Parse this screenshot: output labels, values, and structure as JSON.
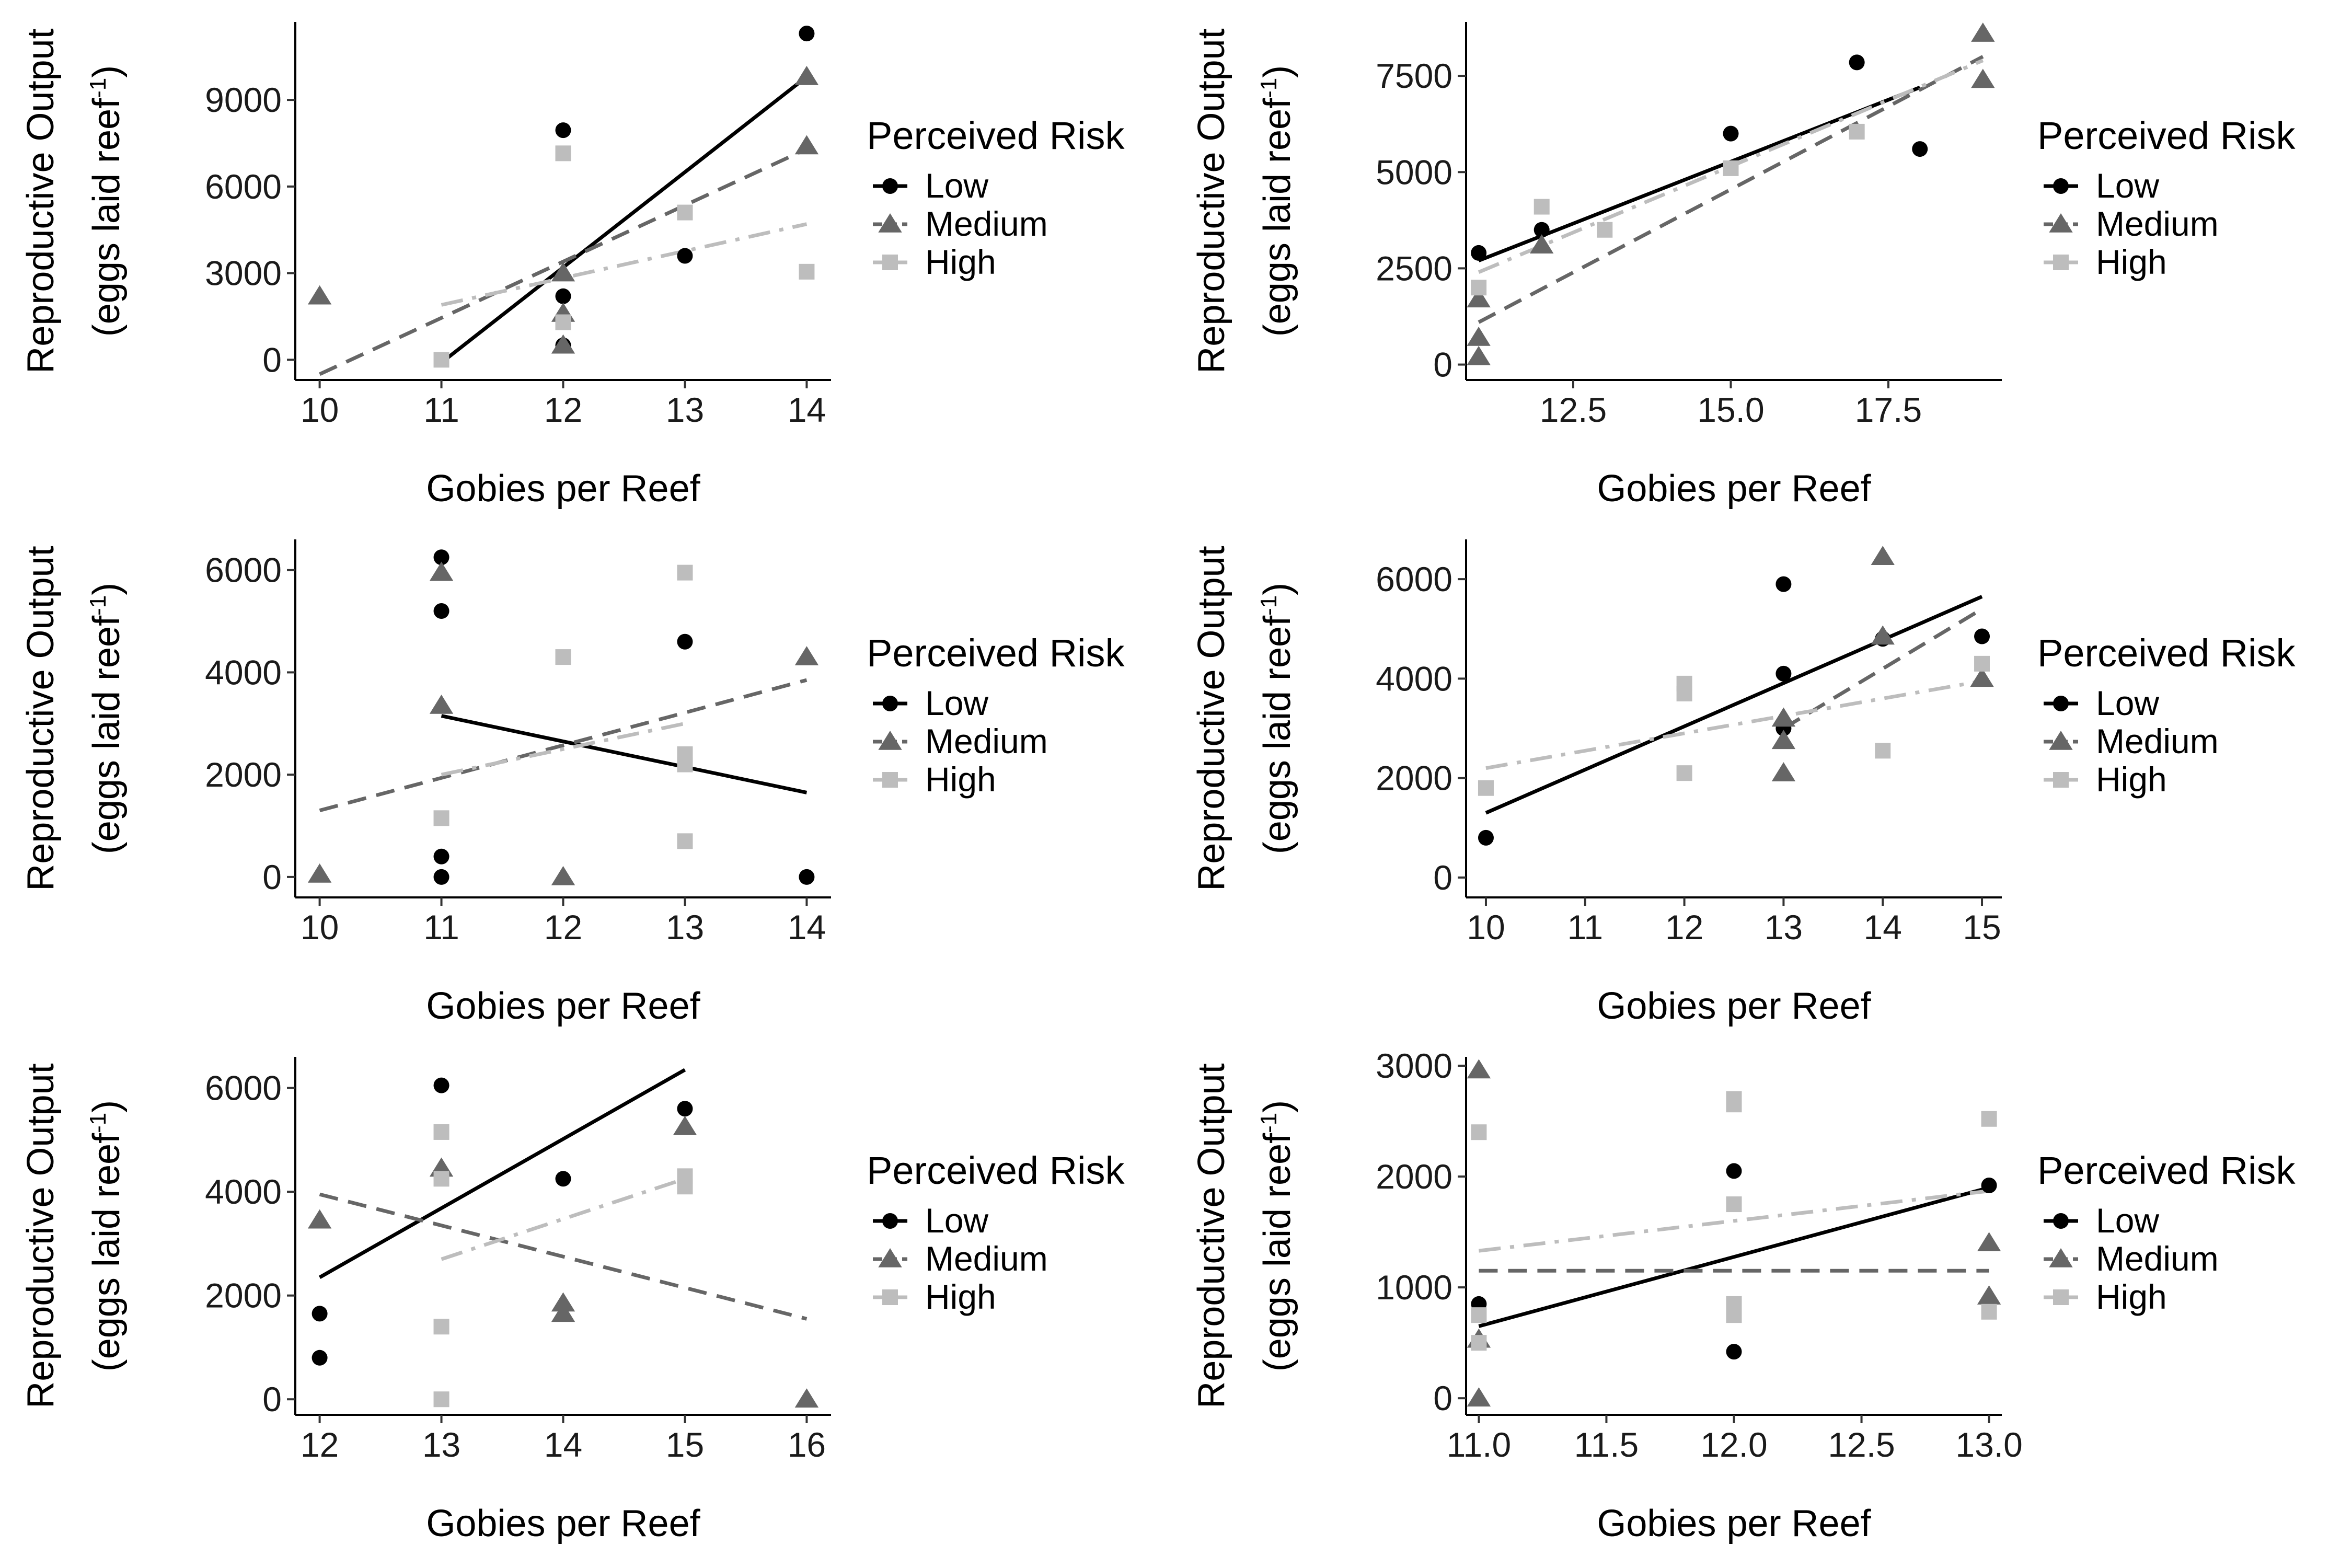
{
  "legend": {
    "title": "Perceived Risk",
    "levels": [
      "Low",
      "Medium",
      "High"
    ],
    "colors": {
      "Low": "#000000",
      "Medium": "#666666",
      "High": "#bdbdbd"
    },
    "shapes": {
      "Low": "circle",
      "Medium": "triangle",
      "High": "square"
    },
    "line_styles": {
      "Low": "solid",
      "Medium": "dashed",
      "High": "dot-dash"
    }
  },
  "axis_titles": {
    "x": "Gobies per Reef",
    "y_line1": "Reproductive Output",
    "y_line2_text": "(eggs laid reef",
    "y_line2_sup": "-1",
    "y_line2_close": ")"
  },
  "chart_data": [
    {
      "type": "scatter",
      "xlim": [
        9.8,
        14.2
      ],
      "ylim": [
        -700,
        11700
      ],
      "x_ticks": [
        10,
        11,
        12,
        13,
        14
      ],
      "x_tick_labels": [
        "10",
        "11",
        "12",
        "13",
        "14"
      ],
      "y_ticks": [
        0,
        3000,
        6000,
        9000
      ],
      "y_tick_labels": [
        "0",
        "3000",
        "6000",
        "9000"
      ],
      "series": [
        {
          "name": "Low",
          "points": [
            [
              12,
              7950
            ],
            [
              12,
              2200
            ],
            [
              12,
              500
            ],
            [
              13,
              3600
            ],
            [
              14,
              11300
            ]
          ],
          "fit": [
            [
              11,
              -100
            ],
            [
              14,
              9800
            ]
          ]
        },
        {
          "name": "Medium",
          "points": [
            [
              10,
              2200
            ],
            [
              12,
              3000
            ],
            [
              12,
              1600
            ],
            [
              12,
              500
            ],
            [
              14,
              9800
            ],
            [
              14,
              7400
            ]
          ],
          "fit": [
            [
              10,
              -500
            ],
            [
              14,
              7300
            ]
          ]
        },
        {
          "name": "High",
          "points": [
            [
              11,
              0
            ],
            [
              12,
              7150
            ],
            [
              12,
              1300
            ],
            [
              13,
              5100
            ],
            [
              14,
              3050
            ]
          ],
          "fit": [
            [
              11,
              1900
            ],
            [
              14,
              4700
            ]
          ]
        }
      ]
    },
    {
      "type": "scatter",
      "xlim": [
        10.8,
        19.3
      ],
      "ylim": [
        -400,
        8900
      ],
      "x_ticks": [
        12.5,
        15.0,
        17.5
      ],
      "x_tick_labels": [
        "12.5",
        "15.0",
        "17.5"
      ],
      "y_ticks": [
        0,
        2500,
        5000,
        7500
      ],
      "y_tick_labels": [
        "0",
        "2500",
        "5000",
        "7500"
      ],
      "series": [
        {
          "name": "Low",
          "points": [
            [
              11,
              2900
            ],
            [
              12,
              3500
            ],
            [
              15,
              6000
            ],
            [
              17,
              7850
            ],
            [
              18,
              5600
            ]
          ],
          "fit": [
            [
              11,
              2700
            ],
            [
              18,
              7200
            ]
          ]
        },
        {
          "name": "Medium",
          "points": [
            [
              11,
              1700
            ],
            [
              11,
              700
            ],
            [
              11,
              200
            ],
            [
              12,
              3100
            ],
            [
              19,
              8600
            ],
            [
              19,
              7400
            ]
          ],
          "fit": [
            [
              11,
              1100
            ],
            [
              19,
              8000
            ]
          ]
        },
        {
          "name": "High",
          "points": [
            [
              11,
              2000
            ],
            [
              12,
              4100
            ],
            [
              13,
              3500
            ],
            [
              15,
              5100
            ],
            [
              17,
              6050
            ]
          ],
          "fit": [
            [
              11,
              2400
            ],
            [
              19,
              7900
            ]
          ]
        }
      ]
    },
    {
      "type": "scatter",
      "xlim": [
        9.8,
        14.2
      ],
      "ylim": [
        -400,
        6600
      ],
      "x_ticks": [
        10,
        11,
        12,
        13,
        14
      ],
      "x_tick_labels": [
        "10",
        "11",
        "12",
        "13",
        "14"
      ],
      "y_ticks": [
        0,
        2000,
        4000,
        6000
      ],
      "y_tick_labels": [
        "0",
        "2000",
        "4000",
        "6000"
      ],
      "series": [
        {
          "name": "Low",
          "points": [
            [
              11,
              6250
            ],
            [
              11,
              5200
            ],
            [
              11,
              400
            ],
            [
              11,
              0
            ],
            [
              13,
              4600
            ],
            [
              14,
              0
            ]
          ],
          "fit": [
            [
              11,
              3150
            ],
            [
              14,
              1650
            ]
          ]
        },
        {
          "name": "Medium",
          "points": [
            [
              10,
              50
            ],
            [
              11,
              5950
            ],
            [
              11,
              3350
            ],
            [
              12,
              0
            ],
            [
              14,
              4300
            ]
          ],
          "fit": [
            [
              10,
              1300
            ],
            [
              14,
              3850
            ]
          ]
        },
        {
          "name": "High",
          "points": [
            [
              11,
              1150
            ],
            [
              12,
              4300
            ],
            [
              13,
              5950
            ],
            [
              13,
              2400
            ],
            [
              13,
              2200
            ],
            [
              13,
              700
            ]
          ],
          "fit": [
            [
              11,
              2000
            ],
            [
              13,
              3000
            ]
          ]
        }
      ]
    },
    {
      "type": "scatter",
      "xlim": [
        9.8,
        15.2
      ],
      "ylim": [
        -400,
        6800
      ],
      "x_ticks": [
        10,
        11,
        12,
        13,
        14,
        15
      ],
      "x_tick_labels": [
        "10",
        "11",
        "12",
        "13",
        "14",
        "15"
      ],
      "y_ticks": [
        0,
        2000,
        4000,
        6000
      ],
      "y_tick_labels": [
        "0",
        "2000",
        "4000",
        "6000"
      ],
      "series": [
        {
          "name": "Low",
          "points": [
            [
              10,
              800
            ],
            [
              13,
              5900
            ],
            [
              13,
              4100
            ],
            [
              13,
              3000
            ],
            [
              14,
              4800
            ],
            [
              15,
              4850
            ]
          ],
          "fit": [
            [
              10,
              1300
            ],
            [
              15,
              5650
            ]
          ]
        },
        {
          "name": "Medium",
          "points": [
            [
              13,
              3200
            ],
            [
              13,
              2750
            ],
            [
              13,
              2100
            ],
            [
              14,
              6450
            ],
            [
              14,
              4850
            ],
            [
              15,
              4000
            ]
          ],
          "fit": [
            [
              13,
              3000
            ],
            [
              15,
              5400
            ]
          ]
        },
        {
          "name": "High",
          "points": [
            [
              10,
              1800
            ],
            [
              12,
              3900
            ],
            [
              12,
              3700
            ],
            [
              12,
              2100
            ],
            [
              14,
              2550
            ],
            [
              15,
              4300
            ]
          ],
          "fit": [
            [
              10,
              2200
            ],
            [
              15,
              3950
            ]
          ]
        }
      ]
    },
    {
      "type": "scatter",
      "xlim": [
        11.8,
        16.2
      ],
      "ylim": [
        -300,
        6600
      ],
      "x_ticks": [
        12,
        13,
        14,
        15,
        16
      ],
      "x_tick_labels": [
        "12",
        "13",
        "14",
        "15",
        "16"
      ],
      "y_ticks": [
        0,
        2000,
        4000,
        6000
      ],
      "y_tick_labels": [
        "0",
        "2000",
        "4000",
        "6000"
      ],
      "series": [
        {
          "name": "Low",
          "points": [
            [
              12,
              1650
            ],
            [
              12,
              800
            ],
            [
              13,
              6050
            ],
            [
              14,
              4250
            ],
            [
              15,
              5600
            ]
          ],
          "fit": [
            [
              12,
              2350
            ],
            [
              15,
              6350
            ]
          ]
        },
        {
          "name": "Medium",
          "points": [
            [
              12,
              3450
            ],
            [
              13,
              4450
            ],
            [
              14,
              1850
            ],
            [
              14,
              1650
            ],
            [
              15,
              5250
            ],
            [
              16,
              0
            ]
          ],
          "fit": [
            [
              12,
              3950
            ],
            [
              16,
              1550
            ]
          ]
        },
        {
          "name": "High",
          "points": [
            [
              13,
              5150
            ],
            [
              13,
              4250
            ],
            [
              13,
              1400
            ],
            [
              13,
              0
            ],
            [
              15,
              4300
            ],
            [
              15,
              4100
            ]
          ],
          "fit": [
            [
              13,
              2700
            ],
            [
              15,
              4250
            ]
          ]
        }
      ]
    },
    {
      "type": "scatter",
      "xlim": [
        10.95,
        13.05
      ],
      "ylim": [
        -150,
        3080
      ],
      "x_ticks": [
        11.0,
        11.5,
        12.0,
        12.5,
        13.0
      ],
      "x_tick_labels": [
        "11.0",
        "11.5",
        "12.0",
        "12.5",
        "13.0"
      ],
      "y_ticks": [
        0,
        1000,
        2000,
        3000
      ],
      "y_tick_labels": [
        "0",
        "1000",
        "2000",
        "3000"
      ],
      "series": [
        {
          "name": "Low",
          "points": [
            [
              11,
              850
            ],
            [
              12,
              2050
            ],
            [
              12,
              420
            ],
            [
              13,
              1920
            ]
          ],
          "fit": [
            [
              11,
              650
            ],
            [
              13,
              1900
            ]
          ]
        },
        {
          "name": "Medium",
          "points": [
            [
              11,
              2960
            ],
            [
              11,
              530
            ],
            [
              11,
              0
            ],
            [
              13,
              1400
            ],
            [
              13,
              920
            ]
          ],
          "fit": [
            [
              11,
              1150
            ],
            [
              13,
              1150
            ]
          ]
        },
        {
          "name": "High",
          "points": [
            [
              11,
              2400
            ],
            [
              11,
              750
            ],
            [
              11,
              500
            ],
            [
              12,
              2700
            ],
            [
              12,
              2650
            ],
            [
              12,
              1750
            ],
            [
              12,
              850
            ],
            [
              12,
              750
            ],
            [
              13,
              2520
            ],
            [
              13,
              780
            ]
          ],
          "fit": [
            [
              11,
              1330
            ],
            [
              13,
              1870
            ]
          ]
        }
      ]
    }
  ]
}
